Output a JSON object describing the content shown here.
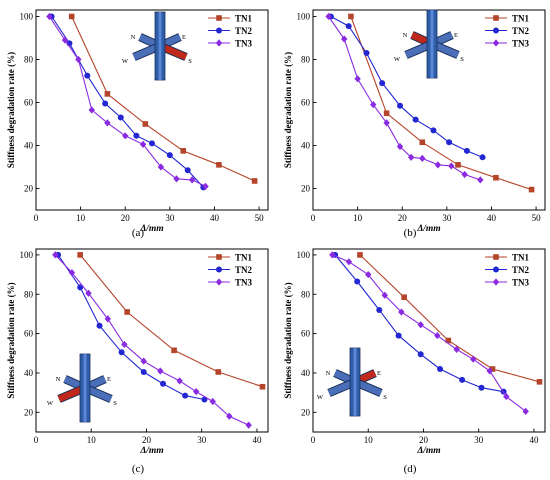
{
  "colors": {
    "TN1": "#b5452a",
    "TN2": "#2227d1",
    "TN3": "#8a2be2",
    "frame": "#000000",
    "column": "#2f5ea8",
    "beam": "#4a6fb8",
    "loaded": "#c0281c"
  },
  "chart_data": [
    {
      "type": "line",
      "caption": "(a)",
      "xlabel": "Δ/mm",
      "ylabel": "Stiffness degradation rate (%)",
      "xlim": [
        0,
        52
      ],
      "ylim": [
        10,
        103
      ],
      "xticks": [
        0,
        10,
        20,
        30,
        40,
        50
      ],
      "yticks": [
        20,
        40,
        60,
        80,
        100
      ],
      "grid": false,
      "legend_position": "top-right",
      "directions": [
        "N",
        "E",
        "W",
        "S"
      ],
      "loaded_beam": "S",
      "series": [
        {
          "name": "TN1",
          "marker": "square",
          "x": [
            8,
            16,
            24.5,
            33,
            41,
            49
          ],
          "y": [
            100,
            64,
            50,
            37.5,
            31,
            23.5
          ]
        },
        {
          "name": "TN2",
          "marker": "circle",
          "x": [
            3.5,
            7.5,
            11.5,
            15.5,
            19,
            22.5,
            26,
            30,
            34,
            37.5
          ],
          "y": [
            100,
            87.5,
            72.5,
            59.5,
            53,
            44.5,
            41,
            35.5,
            28.5,
            20.5
          ]
        },
        {
          "name": "TN3",
          "marker": "diamond",
          "x": [
            3,
            6.5,
            9.5,
            12.5,
            16,
            20,
            24,
            28,
            31.5,
            35,
            38
          ],
          "y": [
            100,
            89,
            80,
            56.5,
            50.5,
            44.5,
            40.5,
            30,
            24.5,
            24,
            21
          ]
        }
      ]
    },
    {
      "type": "line",
      "caption": "(b)",
      "xlabel": "Δ/mm",
      "ylabel": "Stiffness degradation rate (%)",
      "xlim": [
        0,
        52
      ],
      "ylim": [
        10,
        103
      ],
      "xticks": [
        0,
        10,
        20,
        30,
        40,
        50
      ],
      "yticks": [
        20,
        40,
        60,
        80,
        100
      ],
      "grid": false,
      "legend_position": "top-right",
      "directions": [
        "N",
        "E",
        "W",
        "S"
      ],
      "loaded_beam": "N",
      "series": [
        {
          "name": "TN1",
          "marker": "square",
          "x": [
            8.5,
            16.5,
            24.5,
            32.5,
            41,
            49
          ],
          "y": [
            100,
            55,
            41.5,
            31,
            25,
            19.5
          ]
        },
        {
          "name": "TN2",
          "marker": "circle",
          "x": [
            4,
            8,
            12,
            15.5,
            19.5,
            23,
            27,
            30.5,
            34.5,
            38
          ],
          "y": [
            100,
            95.5,
            83,
            69,
            58.5,
            52,
            47,
            41.5,
            37.5,
            34.5
          ]
        },
        {
          "name": "TN3",
          "marker": "diamond",
          "x": [
            3.5,
            7,
            10,
            13.5,
            16.5,
            19.5,
            22,
            24.5,
            28,
            31,
            34,
            37.5
          ],
          "y": [
            100,
            89.5,
            71,
            59,
            50.5,
            39.5,
            34.5,
            34,
            31,
            30.5,
            26.5,
            24
          ]
        }
      ]
    },
    {
      "type": "line",
      "caption": "(c)",
      "xlabel": "Δ/mm",
      "ylabel": "Stiffness degradation rate (%)",
      "xlim": [
        0,
        42
      ],
      "ylim": [
        10,
        103
      ],
      "xticks": [
        0,
        10,
        20,
        30,
        40
      ],
      "yticks": [
        20,
        40,
        60,
        80,
        100
      ],
      "grid": false,
      "legend_position": "top-right",
      "directions": [
        "N",
        "E",
        "W",
        "S"
      ],
      "loaded_beam": "W",
      "series": [
        {
          "name": "TN1",
          "marker": "square",
          "x": [
            8,
            16.5,
            25,
            33,
            41
          ],
          "y": [
            100,
            71,
            51.5,
            40.5,
            33
          ]
        },
        {
          "name": "TN2",
          "marker": "circle",
          "x": [
            4,
            8,
            11.5,
            15.5,
            19.5,
            23,
            27,
            30.5
          ],
          "y": [
            100,
            83.5,
            64,
            50.5,
            40.5,
            34.5,
            28.5,
            26.5
          ]
        },
        {
          "name": "TN3",
          "marker": "diamond",
          "x": [
            3.5,
            6.5,
            9.5,
            13,
            16,
            19.5,
            22.5,
            26,
            29,
            32,
            35,
            38.5
          ],
          "y": [
            100,
            91,
            80.5,
            67.5,
            54.5,
            46,
            41,
            36,
            30.5,
            25.5,
            18,
            13.5
          ]
        }
      ]
    },
    {
      "type": "line",
      "caption": "(d)",
      "xlabel": "Δ/mm",
      "ylabel": "Stiffness degradation rate (%)",
      "xlim": [
        0,
        42
      ],
      "ylim": [
        10,
        103
      ],
      "xticks": [
        0,
        10,
        20,
        30,
        40
      ],
      "yticks": [
        20,
        40,
        60,
        80,
        100
      ],
      "grid": false,
      "legend_position": "top-right",
      "directions": [
        "N",
        "E",
        "W",
        "S"
      ],
      "loaded_beam": "E",
      "series": [
        {
          "name": "TN1",
          "marker": "square",
          "x": [
            8.5,
            16.5,
            24.5,
            32.5,
            41
          ],
          "y": [
            100,
            78.5,
            56.5,
            42,
            35.5
          ]
        },
        {
          "name": "TN2",
          "marker": "circle",
          "x": [
            4,
            8,
            12,
            15.5,
            19.5,
            23,
            27,
            30.5,
            34.5
          ],
          "y": [
            100,
            86.5,
            72,
            59,
            49.5,
            42,
            36.5,
            32.5,
            30.5
          ]
        },
        {
          "name": "TN3",
          "marker": "diamond",
          "x": [
            3.5,
            6.5,
            10,
            13,
            16,
            19.5,
            22.5,
            26,
            29,
            32,
            35,
            38.5
          ],
          "y": [
            100,
            96.5,
            90,
            79.5,
            71,
            64.5,
            59,
            52,
            47,
            41,
            28,
            20.5
          ]
        }
      ]
    }
  ]
}
